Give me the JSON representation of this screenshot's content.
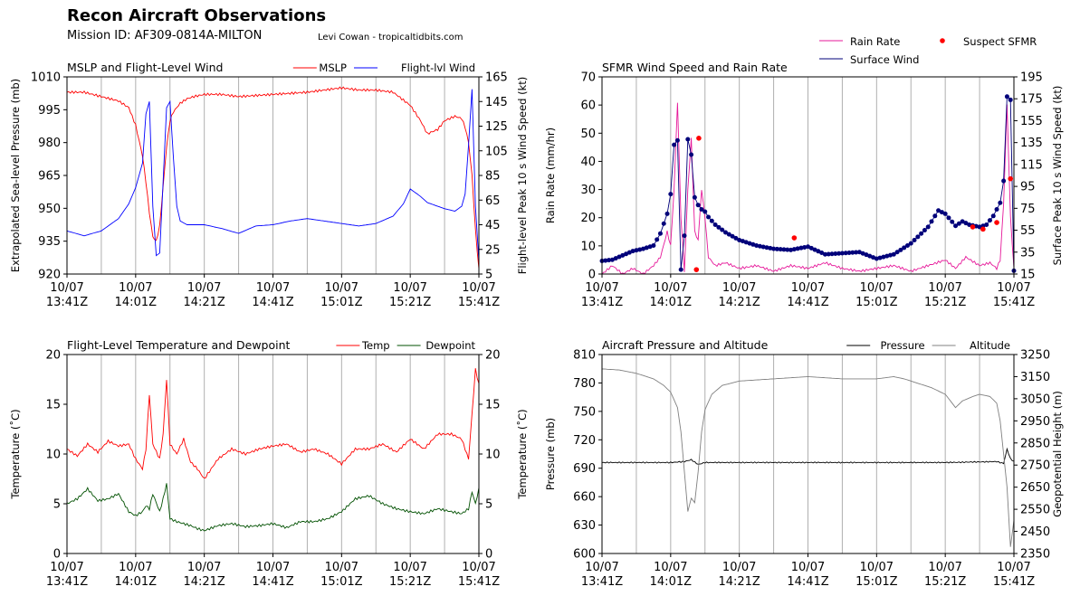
{
  "header": {
    "title": "Recon Aircraft Observations",
    "mission": "Mission ID: AF309-0814A-MILTON",
    "credit": "Levi Cowan - tropicaltidbits.com"
  },
  "x_ticks": [
    [
      "10/07",
      "13:41Z"
    ],
    [
      "10/07",
      "14:01Z"
    ],
    [
      "10/07",
      "14:21Z"
    ],
    [
      "10/07",
      "14:41Z"
    ],
    [
      "10/07",
      "15:01Z"
    ],
    [
      "10/07",
      "15:21Z"
    ],
    [
      "10/07",
      "15:41Z"
    ]
  ],
  "legends": {
    "top_right": [
      {
        "label": "Rain Rate",
        "kind": "line",
        "color": "#e6199a"
      },
      {
        "label": "Suspect SFMR",
        "kind": "dot",
        "color": "#ff0000"
      },
      {
        "label": "Surface Wind",
        "kind": "line",
        "color": "#00007a"
      }
    ]
  },
  "chart_data": [
    {
      "id": "mslp",
      "type": "line",
      "title": "MSLP and Flight-Level Wind",
      "x_range_minutes": [
        0,
        120
      ],
      "legend": [
        {
          "label": "MSLP",
          "color": "#ff0000"
        },
        {
          "label": "Flight-lvl Wind",
          "color": "#0000ff"
        }
      ],
      "left_axis": {
        "label": "Extrapolated Sea-level Pressure (mb)",
        "lim": [
          920,
          1010
        ],
        "ticks": [
          920,
          935,
          950,
          965,
          980,
          995,
          1010
        ]
      },
      "right_axis": {
        "label": "Flight-level Peak 10 s Wind Speed (kt)",
        "lim": [
          5,
          165
        ],
        "ticks": [
          5,
          25,
          45,
          65,
          85,
          105,
          125,
          145,
          165
        ]
      },
      "series": [
        {
          "name": "MSLP",
          "axis": "left",
          "color": "#ff0000",
          "x": [
            0,
            5,
            10,
            15,
            18,
            20,
            22,
            23,
            24,
            25,
            26,
            27,
            28,
            29,
            30,
            31,
            32,
            33,
            35,
            37,
            40,
            45,
            50,
            60,
            70,
            80,
            85,
            90,
            95,
            100,
            103,
            105,
            108,
            110,
            113,
            115,
            116,
            117,
            118,
            119,
            120
          ],
          "y": [
            1003,
            1003,
            1001,
            999,
            996,
            988,
            974,
            962,
            948,
            937,
            935,
            942,
            960,
            978,
            990,
            994,
            996,
            998,
            1000,
            1001,
            1002,
            1002,
            1001,
            1002,
            1003,
            1005,
            1004,
            1004,
            1003,
            997,
            990,
            984,
            986,
            990,
            992,
            991,
            987,
            980,
            965,
            940,
            922
          ]
        },
        {
          "name": "Flight-lvl Wind",
          "axis": "right",
          "color": "#0000ff",
          "x": [
            0,
            5,
            10,
            15,
            18,
            20,
            22,
            23,
            24,
            25,
            26,
            27,
            28,
            29,
            30,
            31,
            32,
            33,
            35,
            40,
            45,
            50,
            55,
            60,
            65,
            70,
            75,
            80,
            85,
            90,
            95,
            98,
            100,
            103,
            105,
            108,
            110,
            113,
            115,
            116,
            117,
            118,
            119,
            120
          ],
          "y": [
            40,
            36,
            40,
            50,
            62,
            75,
            95,
            135,
            145,
            60,
            20,
            22,
            80,
            140,
            145,
            100,
            60,
            48,
            45,
            45,
            42,
            38,
            44,
            45,
            48,
            50,
            48,
            46,
            44,
            46,
            52,
            62,
            74,
            68,
            63,
            60,
            58,
            56,
            60,
            70,
            110,
            155,
            60,
            15
          ]
        }
      ]
    },
    {
      "id": "sfmr",
      "type": "line",
      "title": "SFMR Wind Speed and Rain Rate",
      "x_range_minutes": [
        0,
        120
      ],
      "left_axis": {
        "label": "Rain Rate (mm/hr)",
        "lim": [
          0,
          70
        ],
        "ticks": [
          0,
          10,
          20,
          30,
          40,
          50,
          60,
          70
        ]
      },
      "right_axis": {
        "label": "Surface Peak 10 s Wind Speed (kt)",
        "lim": [
          15,
          195
        ],
        "ticks": [
          15,
          35,
          55,
          75,
          95,
          115,
          135,
          155,
          175,
          195
        ]
      },
      "series": [
        {
          "name": "Rain Rate",
          "axis": "left",
          "color": "#e6199a",
          "x": [
            0,
            3,
            6,
            9,
            12,
            15,
            17,
            19,
            20,
            21,
            22,
            23,
            24,
            25,
            26,
            27,
            28,
            29,
            30,
            31,
            33,
            36,
            40,
            45,
            50,
            55,
            60,
            65,
            70,
            75,
            80,
            85,
            90,
            95,
            100,
            103,
            106,
            110,
            113,
            115,
            116,
            117,
            118,
            119,
            120
          ],
          "y": [
            0,
            3,
            0,
            2,
            0,
            3,
            6,
            15,
            10,
            30,
            61,
            20,
            1,
            30,
            48,
            15,
            12,
            30,
            20,
            6,
            3,
            4,
            2,
            3,
            1,
            3,
            2,
            4,
            2,
            1,
            2,
            3,
            1,
            3,
            5,
            2,
            6,
            3,
            4,
            2,
            5,
            25,
            60,
            20,
            2
          ]
        },
        {
          "name": "Surface Wind",
          "axis": "right",
          "color": "#00007a",
          "x": [
            0,
            3,
            6,
            9,
            12,
            15,
            17,
            19,
            20,
            21,
            22,
            23,
            24,
            25,
            26,
            27,
            28,
            29,
            30,
            31,
            33,
            36,
            40,
            45,
            50,
            55,
            60,
            65,
            70,
            75,
            80,
            85,
            90,
            95,
            98,
            100,
            103,
            105,
            107,
            110,
            112,
            114,
            116,
            117,
            118,
            119,
            120
          ],
          "y": [
            27,
            28,
            32,
            36,
            38,
            41,
            52,
            70,
            88,
            133,
            137,
            19,
            50,
            138,
            124,
            85,
            78,
            74,
            72,
            67,
            60,
            53,
            46,
            41,
            38,
            37,
            40,
            33,
            34,
            35,
            29,
            33,
            43,
            58,
            73,
            70,
            59,
            63,
            60,
            58,
            60,
            68,
            80,
            100,
            177,
            174,
            18
          ]
        },
        {
          "name": "Suspect SFMR",
          "axis": "right",
          "color": "#ff0000",
          "kind": "dot",
          "x": [
            27.5,
            28.2,
            56,
            108,
            111,
            115,
            119
          ],
          "y": [
            19,
            139,
            48,
            58,
            56,
            62,
            102
          ]
        }
      ]
    },
    {
      "id": "temp",
      "type": "line",
      "title": "Flight-Level Temperature and Dewpoint",
      "x_range_minutes": [
        0,
        120
      ],
      "legend": [
        {
          "label": "Temp",
          "color": "#ff0000"
        },
        {
          "label": "Dewpoint",
          "color": "#005000"
        }
      ],
      "left_axis": {
        "label": "Temperature (˚C)",
        "lim": [
          0,
          20
        ],
        "ticks": [
          0,
          5,
          10,
          15,
          20
        ]
      },
      "right_axis": {
        "label": "Temperature (˚C)",
        "lim": [
          0,
          20
        ],
        "ticks": [
          0,
          5,
          10,
          15,
          20
        ]
      },
      "series": [
        {
          "name": "Temp",
          "axis": "left",
          "color": "#ff0000",
          "x": [
            0,
            3,
            6,
            9,
            12,
            15,
            18,
            20,
            22,
            23,
            24,
            25,
            27,
            28,
            29,
            30,
            32,
            34,
            36,
            38,
            40,
            44,
            48,
            52,
            56,
            60,
            64,
            68,
            72,
            76,
            80,
            84,
            88,
            92,
            96,
            100,
            104,
            108,
            112,
            115,
            117,
            118,
            119,
            120
          ],
          "y": [
            10.5,
            9.8,
            11,
            10.2,
            11.3,
            10.8,
            11,
            9.5,
            8.5,
            10.5,
            16,
            11,
            9.5,
            12,
            17.5,
            11,
            10,
            11.5,
            9.2,
            8.5,
            7.5,
            9.5,
            10.5,
            10,
            10.5,
            10.8,
            11,
            10.2,
            10.5,
            10,
            9,
            10.5,
            10.5,
            11,
            10.2,
            11.5,
            10.5,
            12,
            12,
            11.5,
            9.5,
            14,
            18.5,
            17
          ]
        },
        {
          "name": "Dewpoint",
          "axis": "left",
          "color": "#005000",
          "x": [
            0,
            3,
            6,
            9,
            12,
            15,
            18,
            20,
            22,
            23,
            24,
            25,
            27,
            28,
            29,
            30,
            32,
            34,
            36,
            38,
            40,
            44,
            48,
            52,
            56,
            60,
            64,
            68,
            72,
            76,
            80,
            84,
            88,
            92,
            96,
            100,
            104,
            108,
            112,
            115,
            117,
            118,
            119,
            120
          ],
          "y": [
            5,
            5.5,
            6.5,
            5.3,
            5.5,
            6,
            4.2,
            3.8,
            4.2,
            4.8,
            4.5,
            6,
            4.2,
            5.5,
            7,
            3.5,
            3.2,
            3,
            2.8,
            2.5,
            2.3,
            2.8,
            3,
            2.7,
            2.8,
            3,
            2.6,
            3.2,
            3.2,
            3.5,
            4.2,
            5.5,
            5.8,
            5,
            4.5,
            4.2,
            4,
            4.5,
            4.2,
            4,
            4.5,
            6.2,
            5,
            6.5
          ]
        }
      ]
    },
    {
      "id": "pressure",
      "type": "line",
      "title": "Aircraft Pressure and Altitude",
      "x_range_minutes": [
        0,
        120
      ],
      "legend": [
        {
          "label": "Pressure",
          "color": "#000000"
        },
        {
          "label": "Altitude",
          "color": "#808080"
        }
      ],
      "left_axis": {
        "label": "Pressure (mb)",
        "lim": [
          600,
          810
        ],
        "ticks": [
          600,
          630,
          660,
          690,
          720,
          750,
          780,
          810
        ]
      },
      "right_axis": {
        "label": "Geopotential Height (m)",
        "lim": [
          2350,
          3250
        ],
        "ticks": [
          2350,
          2450,
          2550,
          2650,
          2750,
          2850,
          2950,
          3050,
          3150,
          3250
        ]
      },
      "series": [
        {
          "name": "Pressure",
          "axis": "left",
          "color": "#000000",
          "x": [
            0,
            10,
            20,
            24,
            26,
            28,
            30,
            40,
            60,
            80,
            100,
            115,
            117,
            118,
            119,
            120
          ],
          "y": [
            696,
            696,
            696,
            697,
            699,
            694,
            696,
            696,
            696,
            696,
            696,
            697,
            695,
            710,
            700,
            697
          ]
        },
        {
          "name": "Altitude",
          "axis": "right",
          "color": "#808080",
          "x": [
            0,
            5,
            10,
            15,
            18,
            20,
            22,
            23,
            24,
            25,
            26,
            27,
            28,
            29,
            30,
            32,
            35,
            40,
            50,
            60,
            70,
            80,
            85,
            88,
            92,
            96,
            100,
            103,
            105,
            108,
            110,
            113,
            115,
            116,
            117,
            118,
            119,
            120
          ],
          "y": [
            3185,
            3180,
            3165,
            3140,
            3110,
            3080,
            3010,
            2900,
            2720,
            2540,
            2600,
            2580,
            2720,
            2900,
            3000,
            3070,
            3110,
            3130,
            3140,
            3150,
            3140,
            3140,
            3150,
            3140,
            3120,
            3100,
            3070,
            3010,
            3040,
            3060,
            3070,
            3060,
            3030,
            2950,
            2800,
            2650,
            2380,
            2500
          ]
        }
      ]
    }
  ]
}
